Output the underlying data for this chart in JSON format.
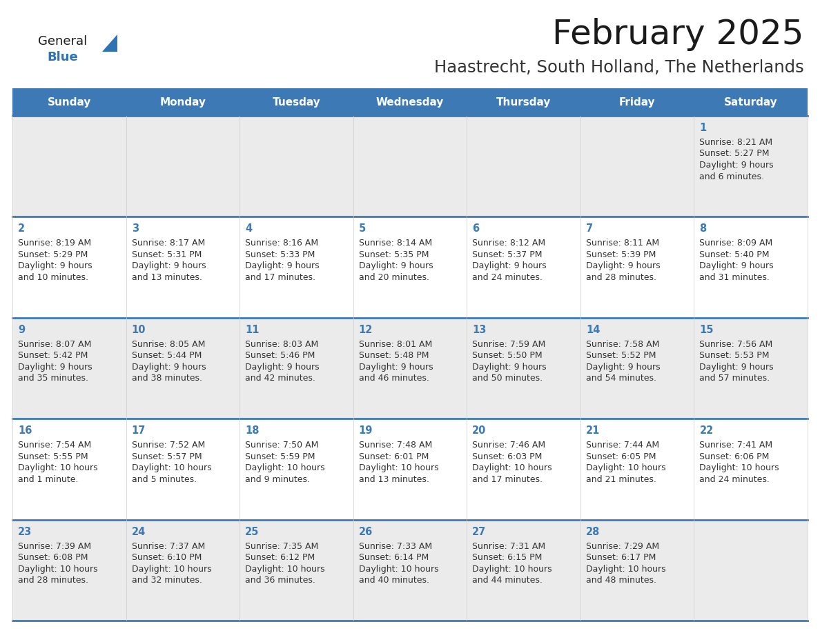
{
  "title": "February 2025",
  "subtitle": "Haastrecht, South Holland, The Netherlands",
  "header_bg": "#3d7ab5",
  "header_text": "#ffffff",
  "day_names": [
    "Sunday",
    "Monday",
    "Tuesday",
    "Wednesday",
    "Thursday",
    "Friday",
    "Saturday"
  ],
  "alt_row_bg": "#ebebeb",
  "white_bg": "#ffffff",
  "border_color": "#3d7ab5",
  "number_color": "#3d7ab5",
  "text_color": "#333333",
  "title_color": "#1a1a1a",
  "subtitle_color": "#333333",
  "logo_general_color": "#1a1a1a",
  "logo_blue_color": "#2e74b5",
  "cal_data": [
    {
      "day": 1,
      "col": 6,
      "row": 0,
      "sunrise": "8:21 AM",
      "sunset": "5:27 PM",
      "daylight": "9 hours and 6 minutes."
    },
    {
      "day": 2,
      "col": 0,
      "row": 1,
      "sunrise": "8:19 AM",
      "sunset": "5:29 PM",
      "daylight": "9 hours and 10 minutes."
    },
    {
      "day": 3,
      "col": 1,
      "row": 1,
      "sunrise": "8:17 AM",
      "sunset": "5:31 PM",
      "daylight": "9 hours and 13 minutes."
    },
    {
      "day": 4,
      "col": 2,
      "row": 1,
      "sunrise": "8:16 AM",
      "sunset": "5:33 PM",
      "daylight": "9 hours and 17 minutes."
    },
    {
      "day": 5,
      "col": 3,
      "row": 1,
      "sunrise": "8:14 AM",
      "sunset": "5:35 PM",
      "daylight": "9 hours and 20 minutes."
    },
    {
      "day": 6,
      "col": 4,
      "row": 1,
      "sunrise": "8:12 AM",
      "sunset": "5:37 PM",
      "daylight": "9 hours and 24 minutes."
    },
    {
      "day": 7,
      "col": 5,
      "row": 1,
      "sunrise": "8:11 AM",
      "sunset": "5:39 PM",
      "daylight": "9 hours and 28 minutes."
    },
    {
      "day": 8,
      "col": 6,
      "row": 1,
      "sunrise": "8:09 AM",
      "sunset": "5:40 PM",
      "daylight": "9 hours and 31 minutes."
    },
    {
      "day": 9,
      "col": 0,
      "row": 2,
      "sunrise": "8:07 AM",
      "sunset": "5:42 PM",
      "daylight": "9 hours and 35 minutes."
    },
    {
      "day": 10,
      "col": 1,
      "row": 2,
      "sunrise": "8:05 AM",
      "sunset": "5:44 PM",
      "daylight": "9 hours and 38 minutes."
    },
    {
      "day": 11,
      "col": 2,
      "row": 2,
      "sunrise": "8:03 AM",
      "sunset": "5:46 PM",
      "daylight": "9 hours and 42 minutes."
    },
    {
      "day": 12,
      "col": 3,
      "row": 2,
      "sunrise": "8:01 AM",
      "sunset": "5:48 PM",
      "daylight": "9 hours and 46 minutes."
    },
    {
      "day": 13,
      "col": 4,
      "row": 2,
      "sunrise": "7:59 AM",
      "sunset": "5:50 PM",
      "daylight": "9 hours and 50 minutes."
    },
    {
      "day": 14,
      "col": 5,
      "row": 2,
      "sunrise": "7:58 AM",
      "sunset": "5:52 PM",
      "daylight": "9 hours and 54 minutes."
    },
    {
      "day": 15,
      "col": 6,
      "row": 2,
      "sunrise": "7:56 AM",
      "sunset": "5:53 PM",
      "daylight": "9 hours and 57 minutes."
    },
    {
      "day": 16,
      "col": 0,
      "row": 3,
      "sunrise": "7:54 AM",
      "sunset": "5:55 PM",
      "daylight": "10 hours and 1 minute."
    },
    {
      "day": 17,
      "col": 1,
      "row": 3,
      "sunrise": "7:52 AM",
      "sunset": "5:57 PM",
      "daylight": "10 hours and 5 minutes."
    },
    {
      "day": 18,
      "col": 2,
      "row": 3,
      "sunrise": "7:50 AM",
      "sunset": "5:59 PM",
      "daylight": "10 hours and 9 minutes."
    },
    {
      "day": 19,
      "col": 3,
      "row": 3,
      "sunrise": "7:48 AM",
      "sunset": "6:01 PM",
      "daylight": "10 hours and 13 minutes."
    },
    {
      "day": 20,
      "col": 4,
      "row": 3,
      "sunrise": "7:46 AM",
      "sunset": "6:03 PM",
      "daylight": "10 hours and 17 minutes."
    },
    {
      "day": 21,
      "col": 5,
      "row": 3,
      "sunrise": "7:44 AM",
      "sunset": "6:05 PM",
      "daylight": "10 hours and 21 minutes."
    },
    {
      "day": 22,
      "col": 6,
      "row": 3,
      "sunrise": "7:41 AM",
      "sunset": "6:06 PM",
      "daylight": "10 hours and 24 minutes."
    },
    {
      "day": 23,
      "col": 0,
      "row": 4,
      "sunrise": "7:39 AM",
      "sunset": "6:08 PM",
      "daylight": "10 hours and 28 minutes."
    },
    {
      "day": 24,
      "col": 1,
      "row": 4,
      "sunrise": "7:37 AM",
      "sunset": "6:10 PM",
      "daylight": "10 hours and 32 minutes."
    },
    {
      "day": 25,
      "col": 2,
      "row": 4,
      "sunrise": "7:35 AM",
      "sunset": "6:12 PM",
      "daylight": "10 hours and 36 minutes."
    },
    {
      "day": 26,
      "col": 3,
      "row": 4,
      "sunrise": "7:33 AM",
      "sunset": "6:14 PM",
      "daylight": "10 hours and 40 minutes."
    },
    {
      "day": 27,
      "col": 4,
      "row": 4,
      "sunrise": "7:31 AM",
      "sunset": "6:15 PM",
      "daylight": "10 hours and 44 minutes."
    },
    {
      "day": 28,
      "col": 5,
      "row": 4,
      "sunrise": "7:29 AM",
      "sunset": "6:17 PM",
      "daylight": "10 hours and 48 minutes."
    }
  ]
}
